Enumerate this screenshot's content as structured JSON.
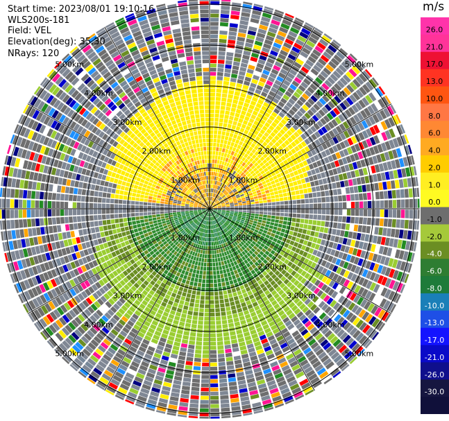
{
  "info": {
    "start_time": "Start time: 2023/08/01 19:10:16",
    "instrument": "WLS200s-181",
    "field": "Field: VEL",
    "elevation": "Elevation(deg): 35.30",
    "nrays": "NRays: 120"
  },
  "colorbar": {
    "unit": "m/s",
    "ticks": [
      "26.0",
      "21.0",
      "17.0",
      "13.0",
      "10.0",
      "8.0",
      "6.0",
      "4.0",
      "2.0",
      "1.0",
      "0.0",
      "-1.0",
      "-2.0",
      "-4.0",
      "-6.0",
      "-8.0",
      "-10.0",
      "-13.0",
      "-17.0",
      "-21.0",
      "-26.0",
      "-30.0"
    ],
    "colors": [
      "#ff33aa",
      "#ff3399",
      "#ee1133",
      "#ff3322",
      "#ff5511",
      "#ff7744",
      "#ff8833",
      "#ffaa22",
      "#ffcc00",
      "#ffee22",
      "#fffb22",
      "#6e6e6e",
      "#a5c93a",
      "#6b8e23",
      "#2e7d32",
      "#1e7b3a",
      "#1a7fb8",
      "#1e4fe6",
      "#1414ff",
      "#0a0ac8",
      "#0f0f8c",
      "#161640",
      "#10103a"
    ]
  },
  "chart_data": {
    "type": "ppi",
    "field": "VEL",
    "units": "m/s",
    "nrays": 120,
    "elevation_deg": 35.3,
    "range_rings_km": [
      1.0,
      2.0,
      3.0,
      4.0,
      5.0
    ],
    "ring_labels": [
      "1.00km",
      "2.00km",
      "3.00km",
      "4.00km",
      "5.00km"
    ],
    "radial_lines_deg": [
      0,
      30,
      60,
      90,
      120,
      150,
      180,
      210,
      240,
      270,
      300,
      330
    ],
    "pattern": "positive velocities (+1 to +4 m/s, yellow/orange) north of the lidar, negative velocities (-1 to -6 m/s, greens) south, noisy mixed values beyond ~3 km"
  }
}
